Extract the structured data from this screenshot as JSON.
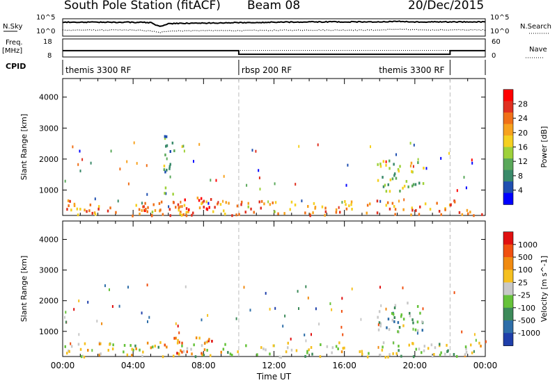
{
  "header": {
    "station": "South Pole Station (fitACF)",
    "beam": "Beam 08",
    "date": "20/Dec/2015"
  },
  "chart_data": [
    {
      "type": "line",
      "panel": "noise",
      "ylabel_left": "N.Sky",
      "ylabel_right": "N.Search",
      "yticks_left": [
        "10^5",
        "10^0"
      ],
      "yticks_right": [
        "10^5",
        "10^0"
      ],
      "x": [
        0,
        4,
        5,
        5.5,
        6,
        8,
        10,
        14,
        18,
        19,
        20,
        22,
        24
      ],
      "sky_level": [
        0.8,
        0.8,
        0.78,
        0.55,
        0.72,
        0.75,
        0.78,
        0.82,
        0.82,
        0.85,
        0.82,
        0.82,
        0.82
      ],
      "search_level": [
        0.35,
        0.35,
        0.3,
        0.2,
        0.3,
        0.32,
        0.32,
        0.35,
        0.35,
        0.4,
        0.36,
        0.36,
        0.36
      ]
    },
    {
      "type": "line",
      "panel": "frequency",
      "ylabel_left": "Freq. [MHz]",
      "ylabel_right": "Nave",
      "yticks_left": [
        "18",
        "8"
      ],
      "yticks_right": [
        "60",
        "0"
      ],
      "freq_x": [
        0,
        10,
        10,
        22,
        22,
        24
      ],
      "freq_mhz": [
        11.5,
        11.5,
        9.5,
        9.5,
        11.5,
        11.5
      ],
      "nave_x": [
        0,
        24
      ],
      "nave": [
        22,
        22
      ]
    },
    {
      "type": "table",
      "panel": "cpid",
      "label": "CPID",
      "segments": [
        {
          "start": 0,
          "end": 10,
          "label": "themis 3300 RF"
        },
        {
          "start": 10,
          "end": 22,
          "label": "rbsp 200 RF"
        },
        {
          "start": 17.8,
          "end": 22,
          "label": "themis 3300 RF"
        }
      ]
    },
    {
      "type": "heatmap",
      "panel": "power",
      "ylabel": "Slant Range [km]",
      "yticks": [
        "1000",
        "2000",
        "3000",
        "4000"
      ],
      "ylim": [
        180,
        4600
      ],
      "colorbar_label": "Power [dB]",
      "colorbar_ticks": [
        "4",
        "8",
        "12",
        "16",
        "20",
        "24",
        "28"
      ],
      "colorbar_colors": [
        "#0000ff",
        "#1f4fb0",
        "#3a8a6a",
        "#5aa85a",
        "#9ed13a",
        "#f5d020",
        "#f7a21e",
        "#f07018",
        "#e03020",
        "#ff0000"
      ],
      "regions": [
        {
          "x": [
            0,
            24
          ],
          "y": [
            200,
            700
          ],
          "level": 0.72
        },
        {
          "x": [
            4.5,
            8.5
          ],
          "y": [
            300,
            900
          ],
          "level": 0.9
        },
        {
          "x": [
            17.8,
            20.5
          ],
          "y": [
            1000,
            2000
          ],
          "level": 0.4
        },
        {
          "x": [
            5.5,
            6.3
          ],
          "y": [
            900,
            3000
          ],
          "level": 0.3
        }
      ]
    },
    {
      "type": "heatmap",
      "panel": "velocity",
      "ylabel": "Slant Range [km]",
      "yticks": [
        "1000",
        "2000",
        "3000",
        "4000"
      ],
      "ylim": [
        180,
        4600
      ],
      "xticks": [
        "00:00",
        "04:00",
        "08:00",
        "12:00",
        "16:00",
        "20:00",
        "00:00"
      ],
      "xlabel": "Time UT",
      "colorbar_label": "Velocity [m s^-1]",
      "colorbar_ticks": [
        "1000",
        "500",
        "100",
        "25",
        "-25",
        "-100",
        "-500",
        "-1000"
      ],
      "colorbar_colors": [
        "#1f3faa",
        "#2e6ea8",
        "#3d8a5a",
        "#66c23a",
        "#c8c8c8",
        "#f5c020",
        "#f08a10",
        "#f05010",
        "#e01010"
      ],
      "regions": [
        {
          "x": [
            0,
            24
          ],
          "y": [
            200,
            700
          ],
          "level": 0.5
        },
        {
          "x": [
            4.5,
            8.5
          ],
          "y": [
            300,
            900
          ],
          "level": 0.75
        },
        {
          "x": [
            17.8,
            20.5
          ],
          "y": [
            1000,
            2000
          ],
          "level": 0.35
        }
      ]
    }
  ]
}
